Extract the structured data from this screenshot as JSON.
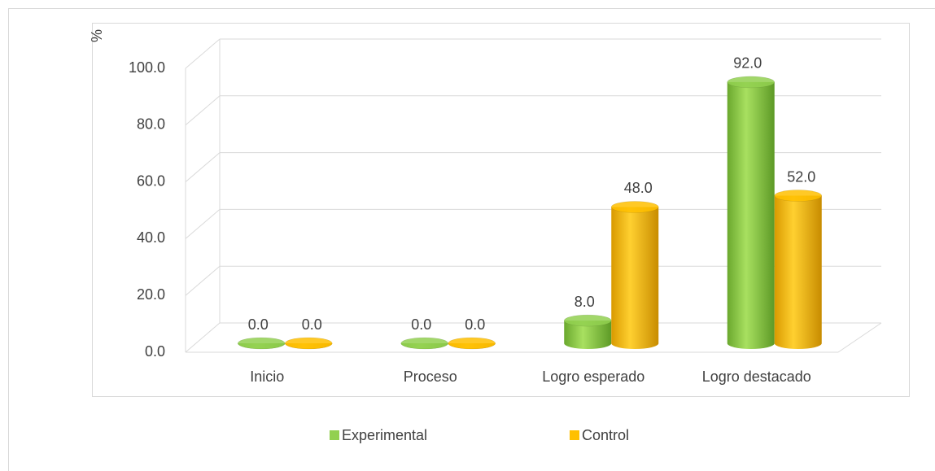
{
  "chart_data": {
    "type": "bar3d",
    "y_label": "%",
    "categories": [
      "Inicio",
      "Proceso",
      "Logro esperado",
      "Logro destacado"
    ],
    "series": [
      {
        "name": "Experimental",
        "color": "#92d050",
        "values": [
          0,
          0,
          8,
          92
        ],
        "value_labels": [
          "0.0",
          "0.0",
          "8.0",
          "92.0"
        ]
      },
      {
        "name": "Control",
        "color": "#ffc000",
        "values": [
          0,
          0,
          48,
          52
        ],
        "value_labels": [
          "0.0",
          "0.0",
          "48.0",
          "52.0"
        ]
      }
    ],
    "ylim": [
      0,
      100
    ],
    "yticks": [
      {
        "value": 0,
        "label": "0.0"
      },
      {
        "value": 20,
        "label": "20.0"
      },
      {
        "value": 40,
        "label": "40.0"
      },
      {
        "value": 60,
        "label": "60.0"
      },
      {
        "value": 80,
        "label": "80.0"
      },
      {
        "value": 100,
        "label": "100.0"
      }
    ],
    "grid": true,
    "legend": "bottom"
  }
}
